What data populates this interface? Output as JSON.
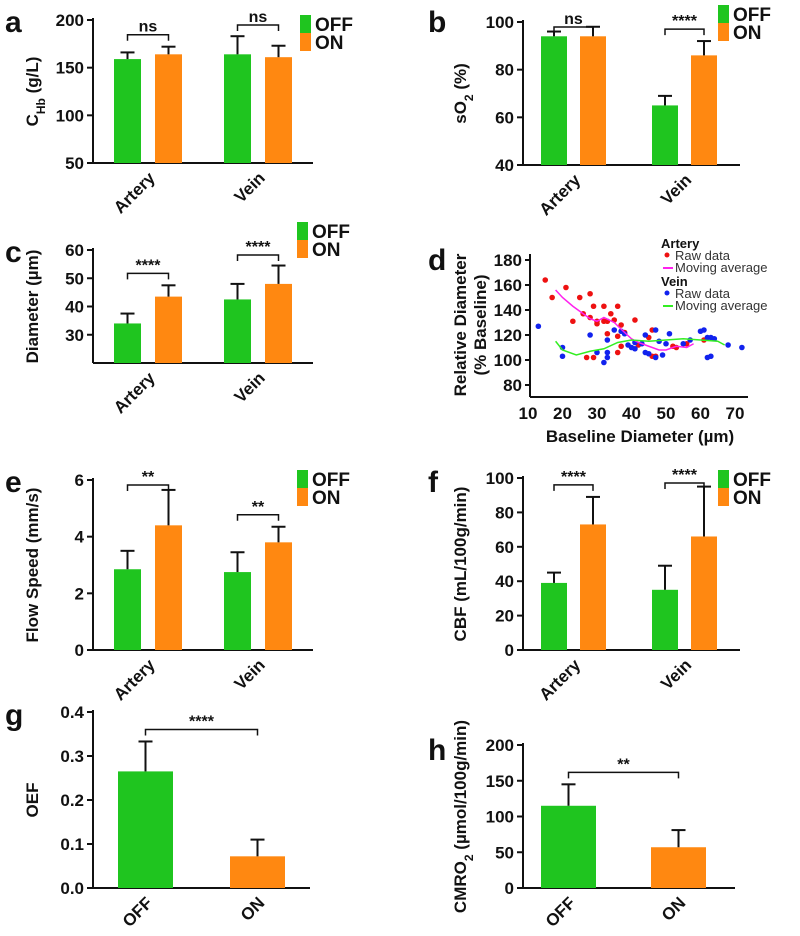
{
  "colors": {
    "OFF": "#1fc51f",
    "ON": "#ff8811",
    "artery_raw": "#ee1111",
    "vein_raw": "#1122ee",
    "artery_avg": "#ff22ee",
    "vein_avg": "#33ee22"
  },
  "legend": [
    "OFF",
    "ON"
  ],
  "chart_data": [
    {
      "panel": "a",
      "type": "bar",
      "categories": [
        "Artery",
        "Vein"
      ],
      "series": [
        {
          "name": "OFF",
          "values": [
            159,
            164
          ],
          "errors": [
            7,
            19
          ]
        },
        {
          "name": "ON",
          "values": [
            164,
            161
          ],
          "errors": [
            8,
            12
          ]
        }
      ],
      "ylabel": [
        {
          "t": "C"
        },
        {
          "t": "Hb",
          "sub": true
        },
        {
          "t": " (g/L)"
        }
      ],
      "ylim": [
        50,
        200
      ],
      "yticks": [
        50,
        100,
        150,
        200
      ],
      "significance": [
        "ns",
        "ns"
      ],
      "legend": "top-right"
    },
    {
      "panel": "b",
      "type": "bar",
      "categories": [
        "Artery",
        "Vein"
      ],
      "series": [
        {
          "name": "OFF",
          "values": [
            94,
            65
          ],
          "errors": [
            2,
            4
          ]
        },
        {
          "name": "ON",
          "values": [
            94,
            86
          ],
          "errors": [
            4,
            6
          ]
        }
      ],
      "ylabel": [
        {
          "t": "sO"
        },
        {
          "t": "2",
          "sub": true
        },
        {
          "t": " (%)"
        }
      ],
      "ylim": [
        40,
        100
      ],
      "yticks": [
        40,
        60,
        80,
        100
      ],
      "significance": [
        "ns",
        "****"
      ],
      "legend": "top-right"
    },
    {
      "panel": "c",
      "type": "bar",
      "categories": [
        "Artery",
        "Vein"
      ],
      "series": [
        {
          "name": "OFF",
          "values": [
            34,
            42.5
          ],
          "errors": [
            3.5,
            5.5
          ]
        },
        {
          "name": "ON",
          "values": [
            43.5,
            48
          ],
          "errors": [
            4,
            6.5
          ]
        }
      ],
      "ylabel": [
        {
          "t": "Diameter (µm)"
        }
      ],
      "ylim": [
        20,
        60
      ],
      "yticks": [
        30,
        40,
        50,
        60
      ],
      "significance": [
        "****",
        "****"
      ],
      "legend": "top-right"
    },
    {
      "panel": "d",
      "type": "scatter",
      "title": "",
      "xlabel": "Baseline Diameter (µm)",
      "ylabel": [
        "Relative Diameter",
        "(% Baseline)"
      ],
      "xlim": [
        10,
        73
      ],
      "ylim": [
        80,
        180
      ],
      "xticks": [
        10,
        20,
        30,
        40,
        50,
        60,
        70
      ],
      "yticks": [
        80,
        100,
        120,
        140,
        160,
        180
      ],
      "legend_groups": [
        {
          "title": "Artery",
          "raw": "Raw data",
          "avg": "Moving average"
        },
        {
          "title": "Vein",
          "raw": "Raw data",
          "avg": "Moving average"
        }
      ],
      "artery_raw": [
        [
          15,
          164
        ],
        [
          17,
          150
        ],
        [
          21,
          158
        ],
        [
          23,
          131
        ],
        [
          25,
          150
        ],
        [
          26,
          137
        ],
        [
          27,
          102
        ],
        [
          28,
          134
        ],
        [
          28,
          153
        ],
        [
          29,
          143
        ],
        [
          29,
          102
        ],
        [
          30,
          131
        ],
        [
          30,
          129
        ],
        [
          32,
          143
        ],
        [
          32,
          131
        ],
        [
          33,
          131
        ],
        [
          33,
          121
        ],
        [
          34,
          137
        ],
        [
          35,
          132
        ],
        [
          36,
          143
        ],
        [
          36,
          119
        ],
        [
          36,
          106
        ],
        [
          37,
          128
        ],
        [
          37,
          111
        ],
        [
          38,
          122
        ],
        [
          41,
          132
        ],
        [
          42,
          112
        ],
        [
          45,
          118
        ],
        [
          46,
          103
        ],
        [
          46,
          124
        ],
        [
          47,
          103
        ],
        [
          52,
          111
        ],
        [
          53,
          110
        ],
        [
          56,
          113
        ],
        [
          61,
          116
        ]
      ],
      "vein_raw": [
        [
          13,
          127
        ],
        [
          20,
          110
        ],
        [
          20,
          103
        ],
        [
          28,
          120
        ],
        [
          30,
          106
        ],
        [
          32,
          98
        ],
        [
          33,
          116
        ],
        [
          33,
          106
        ],
        [
          33,
          102
        ],
        [
          35,
          124
        ],
        [
          37,
          123
        ],
        [
          38,
          121
        ],
        [
          39,
          112
        ],
        [
          40,
          110
        ],
        [
          41,
          109
        ],
        [
          41,
          114
        ],
        [
          43,
          113
        ],
        [
          44,
          106
        ],
        [
          44,
          120
        ],
        [
          45,
          105
        ],
        [
          47,
          124
        ],
        [
          47,
          102
        ],
        [
          48,
          115
        ],
        [
          49,
          104
        ],
        [
          50,
          113
        ],
        [
          51,
          121
        ],
        [
          55,
          113
        ],
        [
          57,
          116
        ],
        [
          60,
          123
        ],
        [
          61,
          124
        ],
        [
          62,
          118
        ],
        [
          62,
          102
        ],
        [
          63,
          118
        ],
        [
          63,
          103
        ],
        [
          64,
          117
        ],
        [
          68,
          112
        ],
        [
          72,
          110
        ]
      ],
      "artery_avg": [
        [
          18,
          156
        ],
        [
          20,
          150
        ],
        [
          23,
          143
        ],
        [
          26,
          137
        ],
        [
          28,
          133
        ],
        [
          30,
          131
        ],
        [
          32,
          134
        ],
        [
          35,
          130
        ],
        [
          38,
          122
        ],
        [
          40,
          117
        ],
        [
          42,
          114
        ],
        [
          45,
          111
        ],
        [
          48,
          108
        ],
        [
          50,
          108
        ],
        [
          53,
          111
        ],
        [
          56,
          110
        ],
        [
          58,
          113
        ]
      ],
      "vein_avg": [
        [
          18,
          115
        ],
        [
          20,
          108
        ],
        [
          24,
          104
        ],
        [
          28,
          107
        ],
        [
          32,
          109
        ],
        [
          36,
          114
        ],
        [
          40,
          116
        ],
        [
          45,
          115
        ],
        [
          50,
          116
        ],
        [
          55,
          117
        ],
        [
          60,
          116
        ],
        [
          65,
          115
        ],
        [
          67,
          112
        ]
      ]
    },
    {
      "panel": "e",
      "type": "bar",
      "categories": [
        "Artery",
        "Vein"
      ],
      "series": [
        {
          "name": "OFF",
          "values": [
            2.85,
            2.75
          ],
          "errors": [
            0.65,
            0.7
          ]
        },
        {
          "name": "ON",
          "values": [
            4.4,
            3.8
          ],
          "errors": [
            1.25,
            0.55
          ]
        }
      ],
      "ylabel": [
        {
          "t": "Flow Speed (mm/s)"
        }
      ],
      "ylim": [
        0,
        6
      ],
      "yticks": [
        0,
        2,
        4,
        6
      ],
      "significance": [
        "**",
        "**"
      ],
      "legend": "top-right"
    },
    {
      "panel": "f",
      "type": "bar",
      "categories": [
        "Artery",
        "Vein"
      ],
      "series": [
        {
          "name": "OFF",
          "values": [
            39,
            35
          ],
          "errors": [
            6,
            14
          ]
        },
        {
          "name": "ON",
          "values": [
            73,
            66
          ],
          "errors": [
            16,
            29
          ]
        }
      ],
      "ylabel": [
        {
          "t": "CBF (mL/100g/min)"
        }
      ],
      "ylim": [
        0,
        100
      ],
      "yticks": [
        0,
        20,
        40,
        60,
        80,
        100
      ],
      "significance": [
        "****",
        "****"
      ],
      "legend": "top-right"
    },
    {
      "panel": "g",
      "type": "bar",
      "categories": [
        "OFF",
        "ON"
      ],
      "series": [
        {
          "name": "OEF",
          "values": [
            0.265,
            0.072
          ],
          "errors": [
            0.068,
            0.038
          ]
        }
      ],
      "ylabel": [
        {
          "t": "OEF"
        }
      ],
      "ylim": [
        0,
        0.4
      ],
      "yticks": [
        "0.0",
        "0.1",
        "0.2",
        "0.3",
        "0.4"
      ],
      "significance": [
        "****"
      ]
    },
    {
      "panel": "h",
      "type": "bar",
      "categories": [
        "OFF",
        "ON"
      ],
      "series": [
        {
          "name": "CMRO2",
          "values": [
            115,
            57
          ],
          "errors": [
            30,
            24
          ]
        }
      ],
      "ylabel": [
        {
          "t": "CMRO"
        },
        {
          "t": "2",
          "sub": true
        },
        {
          "t": " (µmol/100g/min)"
        }
      ],
      "ylim": [
        0,
        200
      ],
      "yticks": [
        0,
        50,
        100,
        150,
        200
      ],
      "significance": [
        "**"
      ]
    }
  ]
}
